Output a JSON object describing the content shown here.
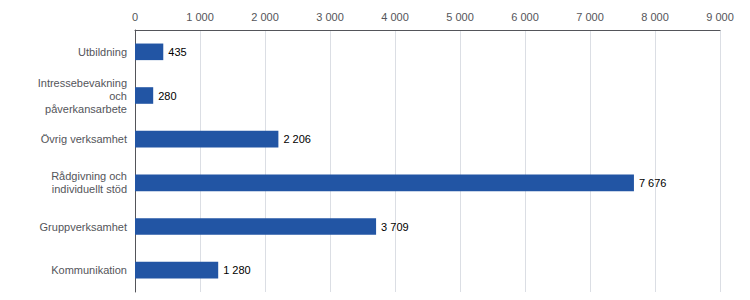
{
  "chart_data": {
    "type": "bar",
    "orientation": "horizontal",
    "categories": [
      "Kommunikation",
      "Gruppverksamhet",
      "Rådgivning och\nindividuellt stöd",
      "Övrig verksamhet",
      "Intressebevakning\noch\npåverkansarbete",
      "Utbildning"
    ],
    "values": [
      1280,
      3709,
      7676,
      2206,
      280,
      435
    ],
    "value_labels": [
      "1 280",
      "3 709",
      "7 676",
      "2 206",
      "280",
      "435"
    ],
    "data_labels": true,
    "color": "#2255a4",
    "xlim": [
      0,
      9000
    ],
    "xticks": [
      0,
      {
        "value": 1000,
        "label": "1 000"
      },
      {
        "value": 2000,
        "label": "2 000"
      },
      {
        "value": 3000,
        "label": "3 000"
      },
      {
        "value": 4000,
        "label": "4 000"
      },
      {
        "value": 5000,
        "label": "5 000"
      },
      {
        "value": 6000,
        "label": "6 000"
      },
      {
        "value": 7000,
        "label": "7 000"
      },
      {
        "value": 8000,
        "label": "8 000"
      },
      {
        "value": 9000,
        "label": "9 000"
      }
    ],
    "grid": true
  }
}
